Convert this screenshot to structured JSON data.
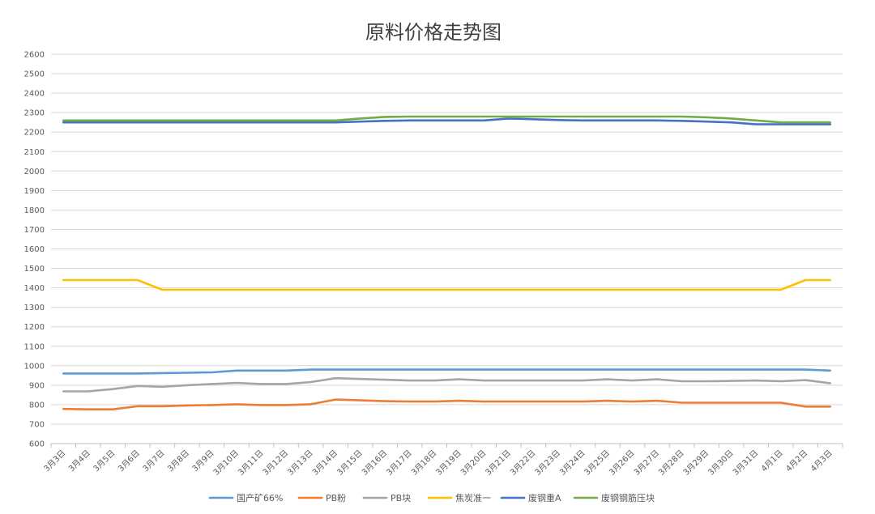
{
  "chart_data": {
    "type": "line",
    "title": "原料价格走势图",
    "xlabel": "",
    "ylabel": "",
    "ylim": [
      600,
      2600
    ],
    "ytick_step": 100,
    "grid": true,
    "legend_position": "bottom",
    "categories": [
      "3月3日",
      "3月4日",
      "3月5日",
      "3月6日",
      "3月7日",
      "3月8日",
      "3月9日",
      "3月10日",
      "3月11日",
      "3月12日",
      "3月13日",
      "3月14日",
      "3月15日",
      "3月16日",
      "3月17日",
      "3月18日",
      "3月19日",
      "3月20日",
      "3月21日",
      "3月22日",
      "3月23日",
      "3月24日",
      "3月25日",
      "3月26日",
      "3月27日",
      "3月28日",
      "3月29日",
      "3月30日",
      "3月31日",
      "4月1日",
      "4月2日",
      "4月3日"
    ],
    "series": [
      {
        "name": "国产矿66%",
        "color": "#5b9bd5",
        "values": [
          960,
          960,
          960,
          960,
          962,
          964,
          966,
          975,
          975,
          975,
          980,
          980,
          980,
          980,
          980,
          980,
          980,
          980,
          980,
          980,
          980,
          980,
          980,
          980,
          980,
          980,
          980,
          980,
          980,
          980,
          980,
          975
        ]
      },
      {
        "name": "PB粉",
        "color": "#ed7d31",
        "values": [
          778,
          776,
          776,
          792,
          792,
          796,
          798,
          802,
          798,
          798,
          802,
          826,
          822,
          818,
          816,
          816,
          820,
          816,
          816,
          816,
          816,
          816,
          820,
          816,
          820,
          810,
          810,
          810,
          810,
          810,
          790,
          790
        ]
      },
      {
        "name": "PB块",
        "color": "#a5a5a5",
        "values": [
          868,
          868,
          880,
          896,
          892,
          900,
          906,
          912,
          906,
          906,
          916,
          936,
          932,
          928,
          924,
          924,
          930,
          924,
          924,
          924,
          924,
          924,
          930,
          924,
          930,
          920,
          920,
          922,
          924,
          920,
          926,
          910
        ]
      },
      {
        "name": "焦炭准一",
        "color": "#ffc000",
        "values": [
          1440,
          1440,
          1440,
          1440,
          1390,
          1390,
          1390,
          1390,
          1390,
          1390,
          1390,
          1390,
          1390,
          1390,
          1390,
          1390,
          1390,
          1390,
          1390,
          1390,
          1390,
          1390,
          1390,
          1390,
          1390,
          1390,
          1390,
          1390,
          1390,
          1390,
          1440,
          1440
        ]
      },
      {
        "name": "废钢重A",
        "color": "#4472c4",
        "values": [
          2250,
          2250,
          2250,
          2250,
          2250,
          2250,
          2250,
          2250,
          2250,
          2250,
          2250,
          2250,
          2254,
          2258,
          2260,
          2260,
          2260,
          2260,
          2270,
          2266,
          2262,
          2260,
          2260,
          2260,
          2260,
          2258,
          2254,
          2250,
          2240,
          2240,
          2240,
          2240
        ]
      },
      {
        "name": "废钢钢筋压块",
        "color": "#70ad47",
        "values": [
          2260,
          2260,
          2260,
          2260,
          2260,
          2260,
          2260,
          2260,
          2260,
          2260,
          2260,
          2260,
          2270,
          2278,
          2280,
          2280,
          2280,
          2280,
          2280,
          2280,
          2280,
          2280,
          2280,
          2280,
          2280,
          2280,
          2276,
          2270,
          2260,
          2250,
          2250,
          2250
        ]
      }
    ]
  }
}
